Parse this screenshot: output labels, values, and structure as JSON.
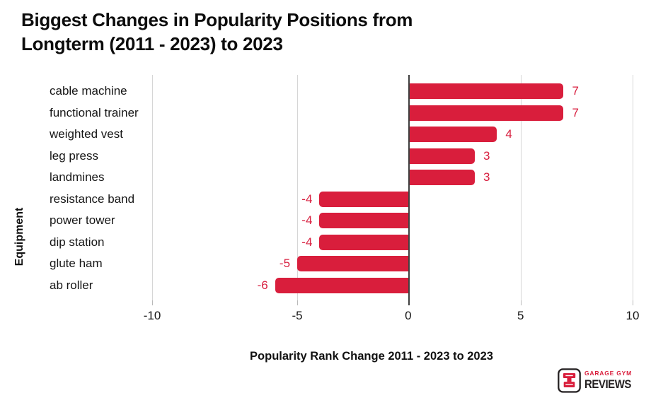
{
  "header": {
    "title": "Biggest Changes in Popularity Positions from\nLongterm (2011 - 2023) to 2023"
  },
  "chart_data": {
    "type": "bar",
    "orientation": "horizontal",
    "title": "Biggest Changes in Popularity Positions from Longterm (2011 - 2023) to 2023",
    "categories": [
      "cable machine",
      "functional trainer",
      "weighted vest",
      "leg press",
      "landmines",
      "resistance band",
      "power tower",
      "dip station",
      "glute ham",
      "ab roller"
    ],
    "values": [
      7,
      7,
      4,
      3,
      3,
      -4,
      -4,
      -4,
      -5,
      -6
    ],
    "xlabel": "Popularity Rank Change 2011 - 2023 to 2023",
    "ylabel": "Equipment",
    "xticks": [
      "-10",
      "-5",
      "0",
      "5",
      "10"
    ],
    "xlim": [
      -11.5,
      10
    ],
    "grid": "vertical-gridlines",
    "legend": "none",
    "bar_color": "#d91e3c",
    "value_label_color": "#d82040"
  },
  "logo": {
    "line1": "GARAGE GYM",
    "line2": "REVIEWS"
  }
}
